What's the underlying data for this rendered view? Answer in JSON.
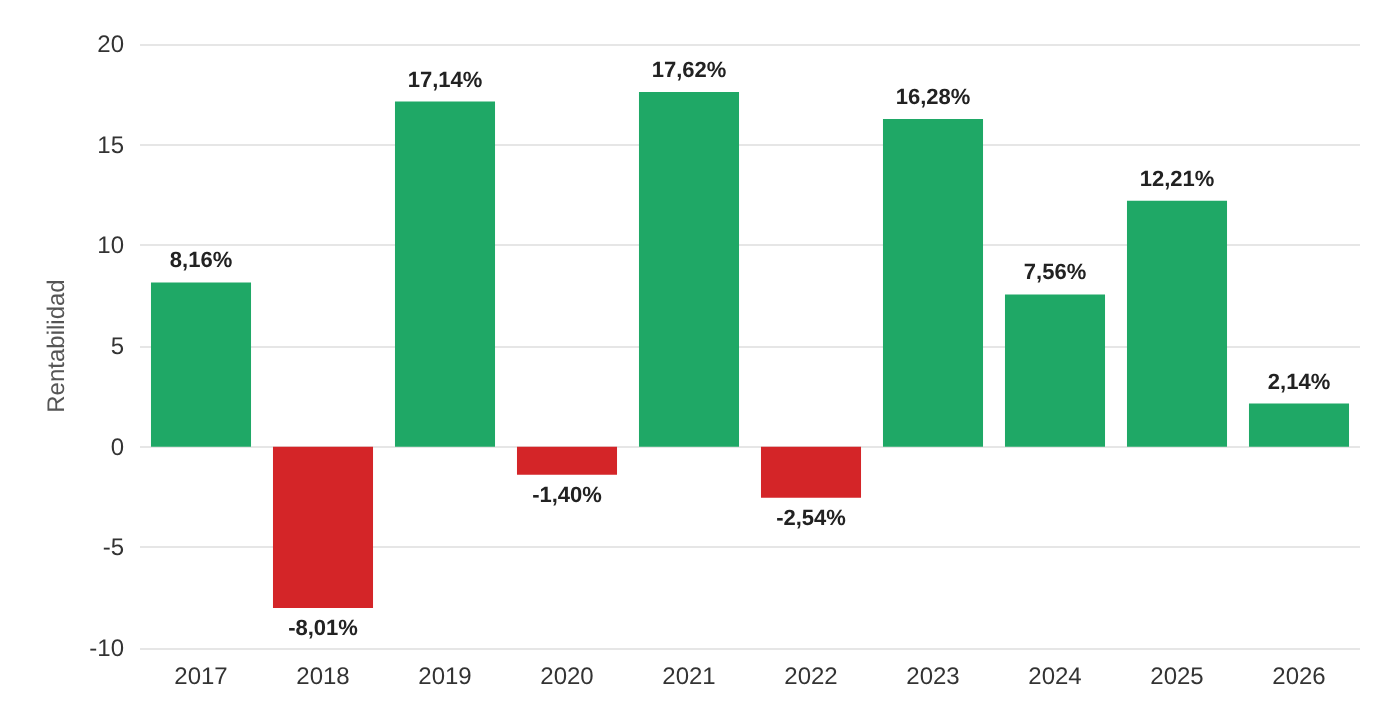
{
  "chart_data": {
    "type": "bar",
    "ylabel": "Rentabilidad",
    "categories": [
      "2017",
      "2018",
      "2019",
      "2020",
      "2021",
      "2022",
      "2023",
      "2024",
      "2025",
      "2026"
    ],
    "values": [
      8.16,
      -8.01,
      17.14,
      -1.4,
      17.62,
      -2.54,
      16.28,
      7.56,
      12.21,
      2.14
    ],
    "value_labels": [
      "8,16%",
      "-8,01%",
      "17,14%",
      "-1,40%",
      "17,62%",
      "-2,54%",
      "16,28%",
      "7,56%",
      "12,21%",
      "2,14%"
    ],
    "colors": [
      "#1fa866",
      "#d42528",
      "#1fa866",
      "#d42528",
      "#1fa866",
      "#d42528",
      "#1fa866",
      "#1fa866",
      "#1fa866",
      "#1fa866"
    ],
    "ylim": [
      -10,
      20
    ],
    "yticks": [
      -10,
      -5,
      0,
      5,
      10,
      15,
      20
    ],
    "grid": "y"
  }
}
